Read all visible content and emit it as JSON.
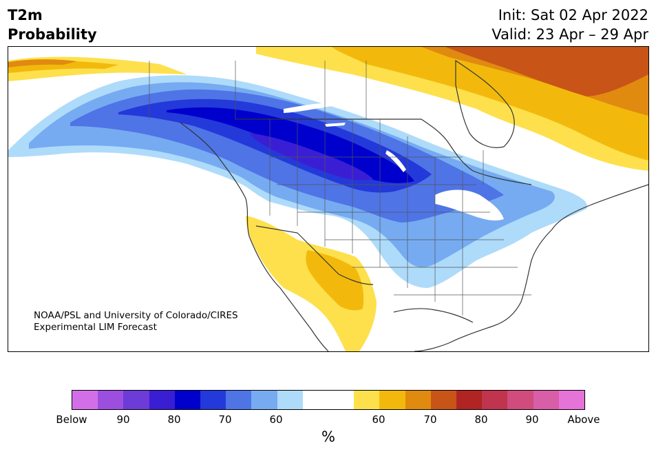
{
  "header": {
    "title_line1": "T2m",
    "title_line2": "Probability",
    "init_text": "Init: Sat 02 Apr 2022",
    "valid_text": "Valid: 23 Apr – 29 Apr"
  },
  "credit": {
    "line1": "NOAA/PSL and University of Colorado/CIRES",
    "line2": "Experimental LIM Forecast"
  },
  "colorbar": {
    "colors": [
      "#d26fe8",
      "#9c4fdf",
      "#6c3bd8",
      "#3a1ed4",
      "#0000cd",
      "#2439d9",
      "#4f74e6",
      "#76abf1",
      "#aedbfa",
      "#ffffff",
      "#ffffff",
      "#fde04c",
      "#f2b90c",
      "#e08a10",
      "#c85418",
      "#b02424",
      "#c0344e",
      "#cf4c7c",
      "#d95ea8",
      "#e673d8"
    ],
    "ticks": [
      "Below",
      "90",
      "80",
      "70",
      "60",
      "60",
      "70",
      "80",
      "90",
      "Above"
    ],
    "unit": "%"
  }
}
